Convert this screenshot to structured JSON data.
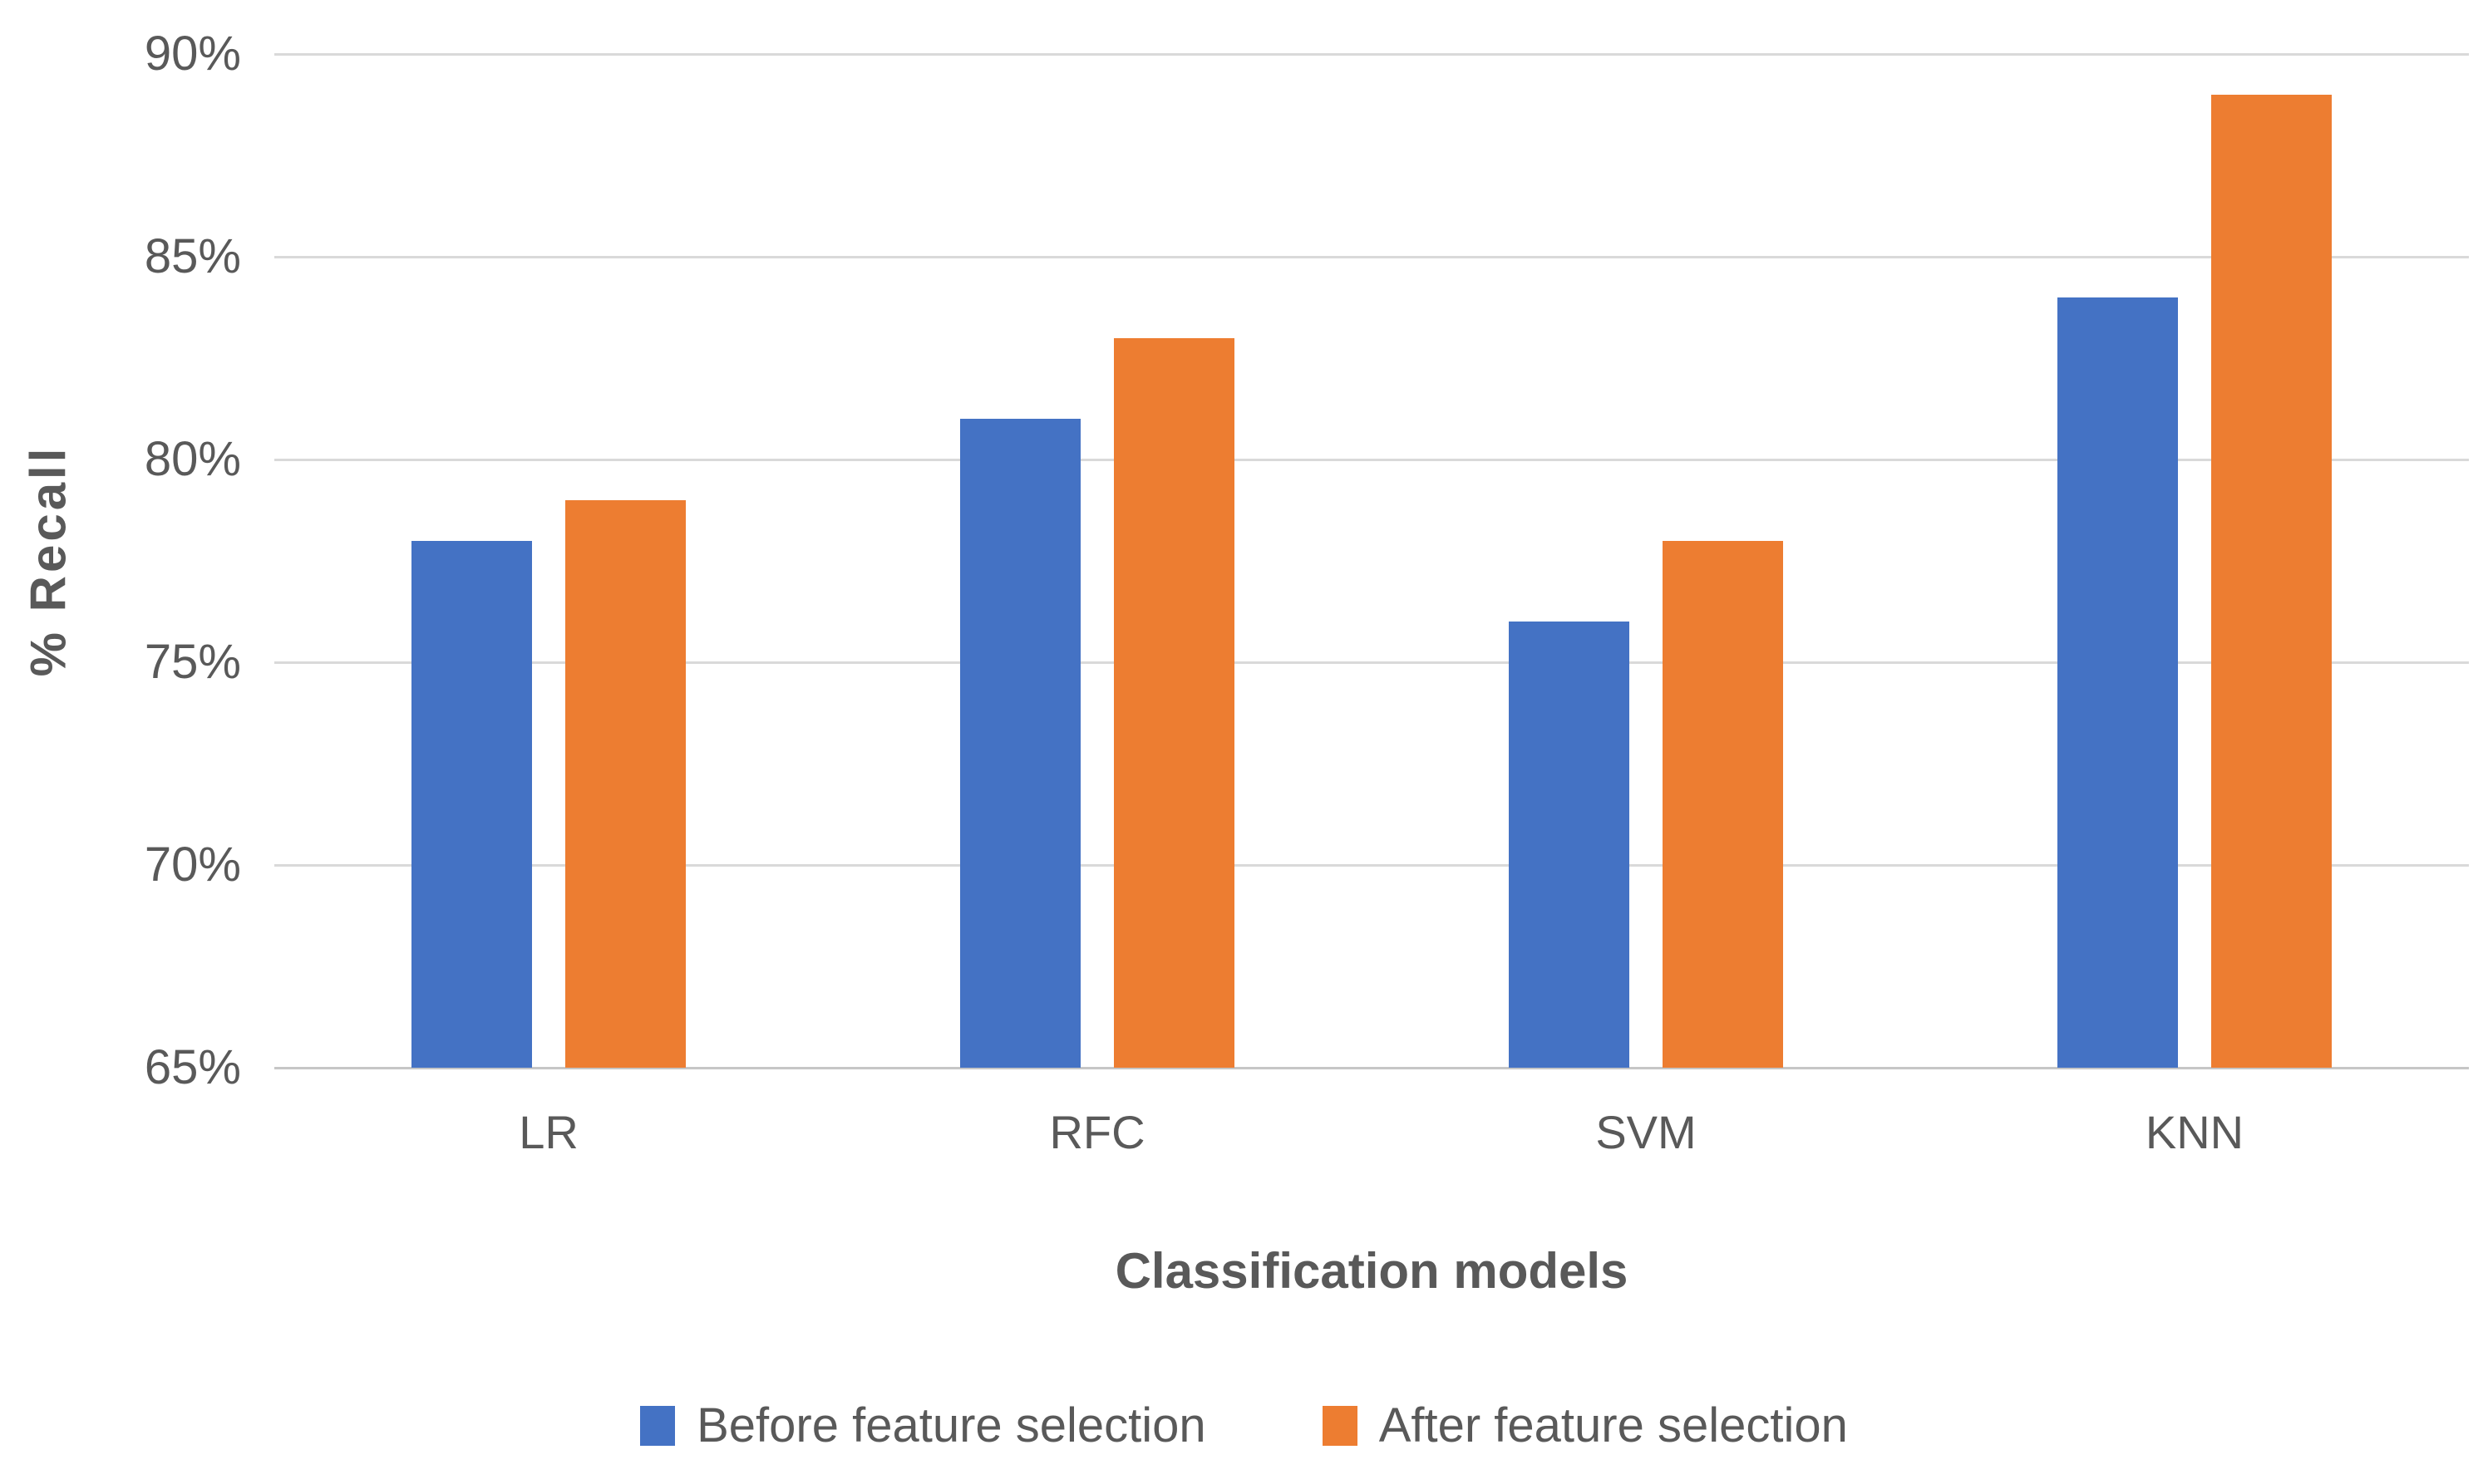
{
  "chart_data": {
    "type": "bar",
    "title": "",
    "categories": [
      "LR",
      "RFC",
      "SVM",
      "KNN"
    ],
    "series": [
      {
        "name": "Before feature selection",
        "color": "#4472C4",
        "values": [
          78,
          81,
          76,
          84
        ]
      },
      {
        "name": "After feature selection",
        "color": "#ED7D31",
        "values": [
          79,
          83,
          78,
          89
        ]
      }
    ],
    "xlabel": "Classification models",
    "ylabel": "% Recall",
    "ylim": [
      65,
      90
    ],
    "y_ticks": [
      {
        "value": 90,
        "label": "90%"
      },
      {
        "value": 85,
        "label": "85%"
      },
      {
        "value": 80,
        "label": "80%"
      },
      {
        "value": 75,
        "label": "75%"
      },
      {
        "value": 70,
        "label": "70%"
      },
      {
        "value": 65,
        "label": "65%"
      }
    ],
    "grid": "horizontal",
    "legend_position": "bottom"
  },
  "colors": {
    "gridline": "#D9D9D9",
    "axis_line": "#C6C6C6",
    "text": "#595959",
    "background": "#FFFFFF"
  }
}
